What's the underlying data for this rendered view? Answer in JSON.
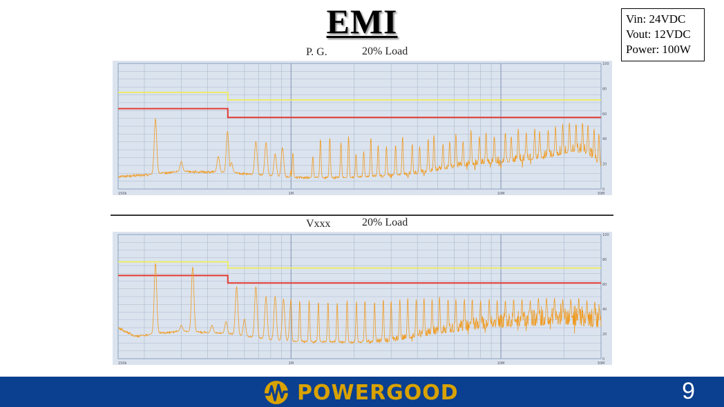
{
  "title": "EMI",
  "specs": [
    "Vin: 24VDC",
    "Vout: 12VDC",
    "Power: 100W"
  ],
  "footer": {
    "brand": "POWERGOOD",
    "page_number": "9"
  },
  "colors": {
    "plot_bg": "#dbe3ee",
    "grid": "#aab8cc",
    "limit_yellow": "#f2ee4a",
    "limit_red": "#e23b32",
    "trace": "#f09a1f",
    "footer_bg": "#0b3f8f",
    "brand": "#d9a200"
  },
  "chart_data": [
    {
      "type": "line",
      "label_left": "P. G.",
      "label_right": "20% Load",
      "x_scale": "log",
      "xlim": [
        0.15,
        30
      ],
      "ylim": [
        0,
        100
      ],
      "x_tick_labels": [
        "150k",
        "1M",
        "10M",
        "30M"
      ],
      "y_tick_labels": [
        "100",
        "80",
        "60",
        "40",
        "20",
        "0"
      ],
      "series": [
        {
          "points": [
            [
              0.15,
              77
            ],
            [
              0.5,
              77
            ],
            [
              0.5,
              71
            ],
            [
              30,
              71
            ]
          ]
        },
        {
          "points": [
            [
              0.15,
              64
            ],
            [
              0.5,
              64
            ],
            [
              0.5,
              57
            ],
            [
              30,
              57
            ]
          ]
        },
        {
          "baseline": [
            [
              0.15,
              10
            ],
            [
              0.2,
              11
            ],
            [
              0.3,
              14
            ],
            [
              0.5,
              13
            ],
            [
              1,
              9
            ],
            [
              2,
              9
            ],
            [
              4,
              12
            ],
            [
              6,
              17
            ],
            [
              8,
              20
            ],
            [
              12,
              22
            ],
            [
              18,
              26
            ],
            [
              22,
              30
            ],
            [
              26,
              28
            ],
            [
              30,
              18
            ]
          ],
          "peaks": [
            [
              0.226,
              56
            ],
            [
              0.3,
              22
            ],
            [
              0.45,
              26
            ],
            [
              0.498,
              46
            ],
            [
              0.52,
              21
            ],
            [
              0.68,
              38
            ],
            [
              0.76,
              37
            ],
            [
              0.84,
              28
            ],
            [
              0.91,
              33
            ],
            [
              1.02,
              29
            ],
            [
              1.27,
              26
            ],
            [
              1.38,
              40
            ],
            [
              1.53,
              41
            ],
            [
              1.73,
              37
            ],
            [
              1.88,
              42
            ],
            [
              2.04,
              28
            ],
            [
              2.22,
              30
            ],
            [
              2.4,
              41
            ],
            [
              2.6,
              35
            ],
            [
              2.85,
              34
            ],
            [
              3.15,
              35
            ],
            [
              3.4,
              42
            ],
            [
              3.78,
              36
            ],
            [
              4.1,
              34
            ],
            [
              4.5,
              40
            ],
            [
              4.8,
              43
            ],
            [
              5.3,
              36
            ],
            [
              5.7,
              38
            ],
            [
              6.1,
              44
            ],
            [
              6.6,
              38
            ],
            [
              7.2,
              47
            ],
            [
              7.9,
              42
            ],
            [
              8.5,
              45
            ],
            [
              9.3,
              42
            ],
            [
              10.5,
              45
            ],
            [
              11.2,
              42
            ],
            [
              12.1,
              48
            ],
            [
              13.2,
              45
            ],
            [
              14.5,
              48
            ],
            [
              15.3,
              46
            ],
            [
              16.8,
              47
            ],
            [
              18.2,
              50
            ],
            [
              19.7,
              52
            ],
            [
              21.2,
              53
            ],
            [
              22.8,
              52
            ],
            [
              24.5,
              53
            ],
            [
              26,
              51
            ],
            [
              27.8,
              48
            ],
            [
              29.3,
              44
            ]
          ]
        }
      ]
    },
    {
      "type": "line",
      "label_left": "Vxxx",
      "label_right": "20% Load",
      "x_scale": "log",
      "xlim": [
        0.15,
        30
      ],
      "ylim": [
        0,
        100
      ],
      "x_tick_labels": [
        "150k",
        "1M",
        "10M",
        "30M"
      ],
      "y_tick_labels": [
        "100",
        "80",
        "60",
        "40",
        "20",
        "0"
      ],
      "series": [
        {
          "points": [
            [
              0.15,
              78
            ],
            [
              0.5,
              78
            ],
            [
              0.5,
              73
            ],
            [
              30,
              73
            ]
          ]
        },
        {
          "points": [
            [
              0.15,
              67
            ],
            [
              0.5,
              67
            ],
            [
              0.5,
              61
            ],
            [
              30,
              61
            ]
          ]
        },
        {
          "baseline": [
            [
              0.15,
              25
            ],
            [
              0.18,
              18
            ],
            [
              0.22,
              20
            ],
            [
              0.3,
              22
            ],
            [
              0.5,
              20
            ],
            [
              0.8,
              15
            ],
            [
              1,
              14
            ],
            [
              2,
              13
            ],
            [
              3,
              14
            ],
            [
              5,
              20
            ],
            [
              8,
              24
            ],
            [
              12,
              26
            ],
            [
              20,
              28
            ],
            [
              30,
              25
            ]
          ],
          "peaks": [
            [
              0.226,
              77
            ],
            [
              0.3,
              27
            ],
            [
              0.34,
              74
            ],
            [
              0.42,
              27
            ],
            [
              0.49,
              30
            ],
            [
              0.55,
              58
            ],
            [
              0.6,
              32
            ],
            [
              0.68,
              58
            ],
            [
              0.76,
              50
            ],
            [
              0.84,
              50
            ],
            [
              0.92,
              48
            ],
            [
              1.0,
              48
            ],
            [
              1.1,
              47
            ],
            [
              1.22,
              47
            ],
            [
              1.35,
              46
            ],
            [
              1.5,
              46
            ],
            [
              1.66,
              45
            ],
            [
              1.85,
              47
            ],
            [
              2.05,
              46
            ],
            [
              2.25,
              47
            ],
            [
              2.5,
              46
            ],
            [
              2.75,
              48
            ],
            [
              3.0,
              47
            ],
            [
              3.3,
              48
            ],
            [
              3.6,
              49
            ],
            [
              3.95,
              48
            ],
            [
              4.3,
              49
            ],
            [
              4.7,
              48
            ],
            [
              5.1,
              50
            ],
            [
              5.6,
              48
            ],
            [
              6.1,
              48
            ],
            [
              6.7,
              48
            ],
            [
              7.3,
              48
            ],
            [
              8.0,
              47
            ],
            [
              8.8,
              48
            ],
            [
              9.6,
              47
            ],
            [
              10.5,
              47
            ],
            [
              11.5,
              48
            ],
            [
              12.6,
              48
            ],
            [
              13.8,
              47
            ],
            [
              15.1,
              49
            ],
            [
              16.5,
              49
            ],
            [
              18.0,
              49
            ],
            [
              19.7,
              48
            ],
            [
              21.5,
              48
            ],
            [
              23.5,
              49
            ],
            [
              25.7,
              47
            ],
            [
              28.0,
              46
            ],
            [
              29.5,
              40
            ]
          ]
        }
      ]
    }
  ]
}
